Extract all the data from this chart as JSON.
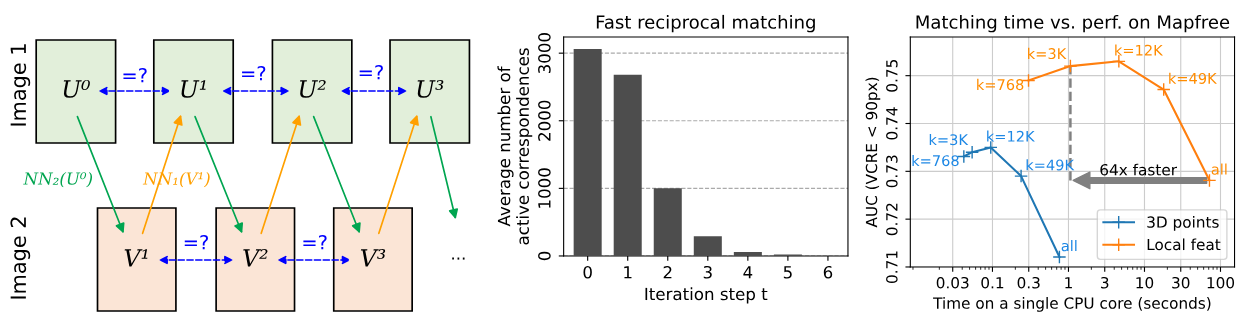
{
  "chart_data": [
    {
      "type": "other",
      "annotations": [
        "Image 1",
        "Image 2",
        "U⁰",
        "U¹",
        "U²",
        "U³",
        "V¹",
        "V²",
        "V³",
        "=?",
        "=?",
        "=?",
        "=?",
        "=?",
        "NN₂(U⁰)",
        "NN₁(V¹)",
        "..."
      ]
    },
    {
      "type": "bar",
      "title": "Fast reciprocal matching",
      "xlabel": "Iteration step t",
      "ylabel": "Average number of\nactive correspondences",
      "categories": [
        "0",
        "1",
        "2",
        "3",
        "4",
        "5",
        "6"
      ],
      "values": [
        3060,
        2680,
        1000,
        290,
        60,
        20,
        0
      ],
      "color": "#4d4d4d",
      "ylim": [
        0,
        3240
      ],
      "yticks": [
        0,
        1000,
        2000,
        3000
      ],
      "grid": "y"
    },
    {
      "type": "line",
      "title": "Matching time vs. perf. on Mapfree",
      "xlabel": "Time on a single CPU core (seconds)",
      "ylabel": "AUC (VCRE < 90px)",
      "series": [
        {
          "name": "3D points",
          "color": "#1f77b4",
          "x": [
            0.042,
            0.054,
            0.095,
            0.238,
            0.76
          ],
          "values": [
            0.7331,
            0.734,
            0.735,
            0.729,
            0.7121
          ]
        },
        {
          "name": "Local feat",
          "color": "#ff7f0e",
          "x": [
            0.298,
            1.06,
            4.6,
            17.9,
            71.6
          ],
          "values": [
            0.749,
            0.752,
            0.753,
            0.7471,
            0.7281
          ]
        }
      ],
      "annotations": [
        {
          "text": "k=768",
          "x": 0.042,
          "y": 0.7331
        },
        {
          "text": "k=3K",
          "x": 0.054,
          "y": 0.734
        },
        {
          "text": "k=12K",
          "x": 0.095,
          "y": 0.735
        },
        {
          "text": "k=49K",
          "x": 0.238,
          "y": 0.729
        },
        {
          "text": "all",
          "x": 0.76,
          "y": 0.7121
        },
        {
          "text": "k=768",
          "x": 0.298,
          "y": 0.749
        },
        {
          "text": "k=3K",
          "x": 1.06,
          "y": 0.752
        },
        {
          "text": "k=12K",
          "x": 4.6,
          "y": 0.753
        },
        {
          "text": "k=49K",
          "x": 17.9,
          "y": 0.7471
        },
        {
          "text": "all",
          "x": 71.6,
          "y": 0.7281
        },
        "64x faster"
      ],
      "log": "x",
      "xlim": [
        0.0083,
        153
      ],
      "xticks": [
        0.03,
        0.1,
        0.3,
        1,
        3,
        10,
        30,
        100
      ],
      "ylim": [
        0.71,
        0.7581
      ],
      "yticks": [
        0.71,
        0.72,
        0.73,
        0.74,
        0.75
      ],
      "grid": true,
      "legend": "bottom right",
      "marker": "cross",
      "line_style": "solid"
    }
  ]
}
